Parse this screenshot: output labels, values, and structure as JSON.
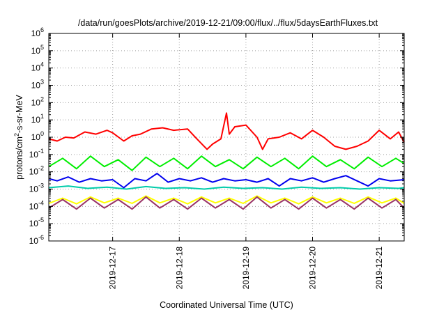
{
  "chart_data": {
    "type": "line",
    "title": "/data/run/goesPlots/archive/2019-12-21/09:00/flux/../flux/5daysEarthFluxes.txt",
    "xlabel": "Coordinated Universal Time (UTC)",
    "ylabel_parts": {
      "prefix": "protons/cm",
      "sup": "2",
      "suffix": "-s-sr-MeV"
    },
    "yscale": "log",
    "ylim": [
      1e-06,
      1000000.0
    ],
    "xlim": [
      "2019-12-16T01:00",
      "2019-12-21T09:00"
    ],
    "grid": true,
    "legend": "none",
    "y_ticks": [
      {
        "value": 1e-06,
        "base": "10",
        "exp": "-6"
      },
      {
        "value": 1e-05,
        "base": "10",
        "exp": "-5"
      },
      {
        "value": 0.0001,
        "base": "10",
        "exp": "-4"
      },
      {
        "value": 0.001,
        "base": "10",
        "exp": "-3"
      },
      {
        "value": 0.01,
        "base": "10",
        "exp": "-2"
      },
      {
        "value": 0.1,
        "base": "10",
        "exp": "-1"
      },
      {
        "value": 1.0,
        "base": "10",
        "exp": "0"
      },
      {
        "value": 10.0,
        "base": "10",
        "exp": "1"
      },
      {
        "value": 100.0,
        "base": "10",
        "exp": "2"
      },
      {
        "value": 1000.0,
        "base": "10",
        "exp": "3"
      },
      {
        "value": 10000.0,
        "base": "10",
        "exp": "4"
      },
      {
        "value": 100000.0,
        "base": "10",
        "exp": "5"
      },
      {
        "value": 1000000.0,
        "base": "10",
        "exp": "6"
      }
    ],
    "x_ticks": [
      {
        "value": "2019-12-17",
        "label": "2019-12-17"
      },
      {
        "value": "2019-12-18",
        "label": "2019-12-18"
      },
      {
        "value": "2019-12-19",
        "label": "2019-12-19"
      },
      {
        "value": "2019-12-20",
        "label": "2019-12-20"
      },
      {
        "value": "2019-12-21",
        "label": "2019-12-21"
      }
    ],
    "series": [
      {
        "color": "#ff0000",
        "x": [
          "2019-12-16T01:00",
          "2019-12-16T04:00",
          "2019-12-16T07:00",
          "2019-12-16T10:00",
          "2019-12-16T14:00",
          "2019-12-16T18:00",
          "2019-12-16T22:00",
          "2019-12-17T00:00",
          "2019-12-17T04:00",
          "2019-12-17T07:00",
          "2019-12-17T10:00",
          "2019-12-17T14:00",
          "2019-12-17T18:00",
          "2019-12-17T22:00",
          "2019-12-18T03:00",
          "2019-12-18T06:00",
          "2019-12-18T10:00",
          "2019-12-18T12:00",
          "2019-12-18T15:00",
          "2019-12-18T17:00",
          "2019-12-18T18:00",
          "2019-12-18T20:00",
          "2019-12-19T00:00",
          "2019-12-19T04:00",
          "2019-12-19T06:00",
          "2019-12-19T08:00",
          "2019-12-19T12:00",
          "2019-12-19T16:00",
          "2019-12-19T20:00",
          "2019-12-20T00:00",
          "2019-12-20T04:00",
          "2019-12-20T08:00",
          "2019-12-20T12:00",
          "2019-12-20T16:00",
          "2019-12-20T20:00",
          "2019-12-21T00:00",
          "2019-12-21T04:00",
          "2019-12-21T07:00",
          "2019-12-21T09:00"
        ],
        "y": [
          0.8,
          0.6,
          1.0,
          0.9,
          2.0,
          1.5,
          2.5,
          1.8,
          0.6,
          1.2,
          1.5,
          3.0,
          3.5,
          2.5,
          3.0,
          0.9,
          0.2,
          0.4,
          0.8,
          25,
          1.5,
          4.0,
          5.0,
          1.0,
          0.2,
          0.8,
          1.0,
          1.8,
          0.8,
          2.5,
          1.0,
          0.3,
          0.2,
          0.3,
          0.6,
          2.5,
          0.8,
          2.0,
          0.5
        ]
      },
      {
        "color": "#00ee00",
        "x": [
          "2019-12-16T01:00",
          "2019-12-16T06:00",
          "2019-12-16T11:00",
          "2019-12-16T16:00",
          "2019-12-16T21:00",
          "2019-12-17T02:00",
          "2019-12-17T07:00",
          "2019-12-17T12:00",
          "2019-12-17T17:00",
          "2019-12-17T22:00",
          "2019-12-18T03:00",
          "2019-12-18T08:00",
          "2019-12-18T13:00",
          "2019-12-18T18:00",
          "2019-12-18T23:00",
          "2019-12-19T04:00",
          "2019-12-19T09:00",
          "2019-12-19T14:00",
          "2019-12-19T19:00",
          "2019-12-20T00:00",
          "2019-12-20T05:00",
          "2019-12-20T10:00",
          "2019-12-20T15:00",
          "2019-12-20T20:00",
          "2019-12-21T01:00",
          "2019-12-21T06:00",
          "2019-12-21T09:00"
        ],
        "y": [
          0.02,
          0.06,
          0.015,
          0.08,
          0.02,
          0.05,
          0.012,
          0.07,
          0.02,
          0.06,
          0.015,
          0.08,
          0.02,
          0.05,
          0.015,
          0.07,
          0.02,
          0.06,
          0.015,
          0.08,
          0.02,
          0.05,
          0.015,
          0.07,
          0.02,
          0.06,
          0.03
        ]
      },
      {
        "color": "#00ccaa",
        "x": [
          "2019-12-16T01:00",
          "2019-12-16T08:00",
          "2019-12-16T15:00",
          "2019-12-16T22:00",
          "2019-12-17T05:00",
          "2019-12-17T12:00",
          "2019-12-17T19:00",
          "2019-12-18T02:00",
          "2019-12-18T09:00",
          "2019-12-18T16:00",
          "2019-12-18T23:00",
          "2019-12-19T06:00",
          "2019-12-19T13:00",
          "2019-12-19T20:00",
          "2019-12-20T03:00",
          "2019-12-20T10:00",
          "2019-12-20T17:00",
          "2019-12-21T00:00",
          "2019-12-21T07:00",
          "2019-12-21T09:00"
        ],
        "y": [
          0.0012,
          0.0015,
          0.0011,
          0.0013,
          0.001,
          0.0014,
          0.0011,
          0.0012,
          0.001,
          0.0013,
          0.0011,
          0.0012,
          0.001,
          0.0013,
          0.0011,
          0.0012,
          0.001,
          0.0012,
          0.0011,
          0.0012
        ]
      },
      {
        "color": "#0000ee",
        "x": [
          "2019-12-16T01:00",
          "2019-12-16T04:00",
          "2019-12-16T08:00",
          "2019-12-16T12:00",
          "2019-12-16T16:00",
          "2019-12-16T20:00",
          "2019-12-17T00:00",
          "2019-12-17T04:00",
          "2019-12-17T08:00",
          "2019-12-17T12:00",
          "2019-12-17T16:00",
          "2019-12-17T20:00",
          "2019-12-18T00:00",
          "2019-12-18T04:00",
          "2019-12-18T08:00",
          "2019-12-18T12:00",
          "2019-12-18T16:00",
          "2019-12-18T20:00",
          "2019-12-19T00:00",
          "2019-12-19T04:00",
          "2019-12-19T08:00",
          "2019-12-19T12:00",
          "2019-12-19T16:00",
          "2019-12-19T20:00",
          "2019-12-20T00:00",
          "2019-12-20T04:00",
          "2019-12-20T08:00",
          "2019-12-20T12:00",
          "2019-12-20T16:00",
          "2019-12-20T20:00",
          "2019-12-21T00:00",
          "2019-12-21T04:00",
          "2019-12-21T09:00"
        ],
        "y": [
          0.004,
          0.003,
          0.005,
          0.0025,
          0.004,
          0.003,
          0.0035,
          0.0012,
          0.004,
          0.003,
          0.008,
          0.0025,
          0.004,
          0.003,
          0.0045,
          0.0025,
          0.004,
          0.003,
          0.0035,
          0.0025,
          0.004,
          0.0015,
          0.004,
          0.003,
          0.0045,
          0.0025,
          0.004,
          0.006,
          0.003,
          0.0015,
          0.004,
          0.003,
          0.0035
        ]
      },
      {
        "color": "#ffff00",
        "x": [
          "2019-12-16T01:00",
          "2019-12-16T06:00",
          "2019-12-16T11:00",
          "2019-12-16T16:00",
          "2019-12-16T21:00",
          "2019-12-17T02:00",
          "2019-12-17T07:00",
          "2019-12-17T12:00",
          "2019-12-17T17:00",
          "2019-12-17T22:00",
          "2019-12-18T03:00",
          "2019-12-18T08:00",
          "2019-12-18T13:00",
          "2019-12-18T18:00",
          "2019-12-18T23:00",
          "2019-12-19T04:00",
          "2019-12-19T09:00",
          "2019-12-19T14:00",
          "2019-12-19T19:00",
          "2019-12-20T00:00",
          "2019-12-20T05:00",
          "2019-12-20T10:00",
          "2019-12-20T15:00",
          "2019-12-20T20:00",
          "2019-12-21T01:00",
          "2019-12-21T06:00",
          "2019-12-21T09:00"
        ],
        "y": [
          0.00015,
          0.0003,
          0.00014,
          0.00035,
          0.00016,
          0.0003,
          0.00015,
          0.0004,
          0.00016,
          0.0003,
          0.00014,
          0.00035,
          0.00016,
          0.0003,
          0.00015,
          0.0004,
          0.00016,
          0.0003,
          0.00014,
          0.00035,
          0.00016,
          0.0003,
          0.00015,
          0.00035,
          0.00016,
          0.0003,
          0.00015
        ]
      },
      {
        "color": "#993366",
        "x": [
          "2019-12-16T01:00",
          "2019-12-16T06:00",
          "2019-12-16T11:00",
          "2019-12-16T16:00",
          "2019-12-16T21:00",
          "2019-12-17T02:00",
          "2019-12-17T07:00",
          "2019-12-17T12:00",
          "2019-12-17T17:00",
          "2019-12-17T22:00",
          "2019-12-18T03:00",
          "2019-12-18T08:00",
          "2019-12-18T13:00",
          "2019-12-18T18:00",
          "2019-12-18T23:00",
          "2019-12-19T04:00",
          "2019-12-19T09:00",
          "2019-12-19T14:00",
          "2019-12-19T19:00",
          "2019-12-20T00:00",
          "2019-12-20T05:00",
          "2019-12-20T10:00",
          "2019-12-20T15:00",
          "2019-12-20T20:00",
          "2019-12-21T01:00",
          "2019-12-21T06:00",
          "2019-12-21T09:00"
        ],
        "y": [
          8e-05,
          0.00025,
          7e-05,
          0.0003,
          8e-05,
          0.00025,
          7e-05,
          0.00035,
          8e-05,
          0.00025,
          7e-05,
          0.0003,
          8e-05,
          0.00025,
          7e-05,
          0.00035,
          8e-05,
          0.00025,
          7e-05,
          0.0003,
          8e-05,
          0.00025,
          7e-05,
          0.0003,
          8e-05,
          0.00025,
          8e-05
        ]
      }
    ]
  }
}
